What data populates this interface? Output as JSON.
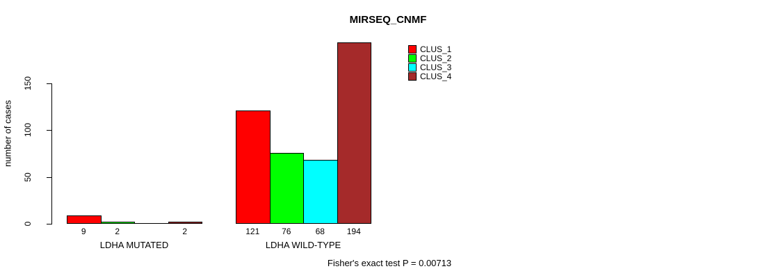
{
  "chart_data": {
    "type": "bar",
    "title": "MIRSEQ_CNMF",
    "ylabel": "number of cases",
    "yticks": [
      0,
      50,
      100,
      150
    ],
    "ylim": [
      0,
      200
    ],
    "grid": false,
    "legend": {
      "position": "top-right",
      "entries": [
        {
          "label": "CLUS_1",
          "color": "#FF0000"
        },
        {
          "label": "CLUS_2",
          "color": "#00FF00"
        },
        {
          "label": "CLUS_3",
          "color": "#00FFFF"
        },
        {
          "label": "CLUS_4",
          "color": "#A52A2A"
        }
      ]
    },
    "categories": [
      "LDHA MUTATED",
      "LDHA WILD-TYPE"
    ],
    "groups": [
      {
        "label": "LDHA MUTATED",
        "values": [
          9,
          2,
          0,
          2
        ],
        "bar_labels": [
          "9",
          "2",
          "",
          "2"
        ]
      },
      {
        "label": "LDHA WILD-TYPE",
        "values": [
          121,
          76,
          68,
          194
        ],
        "bar_labels": [
          "121",
          "76",
          "68",
          "194"
        ]
      }
    ],
    "footnote": "Fisher's exact test P = 0.00713"
  }
}
